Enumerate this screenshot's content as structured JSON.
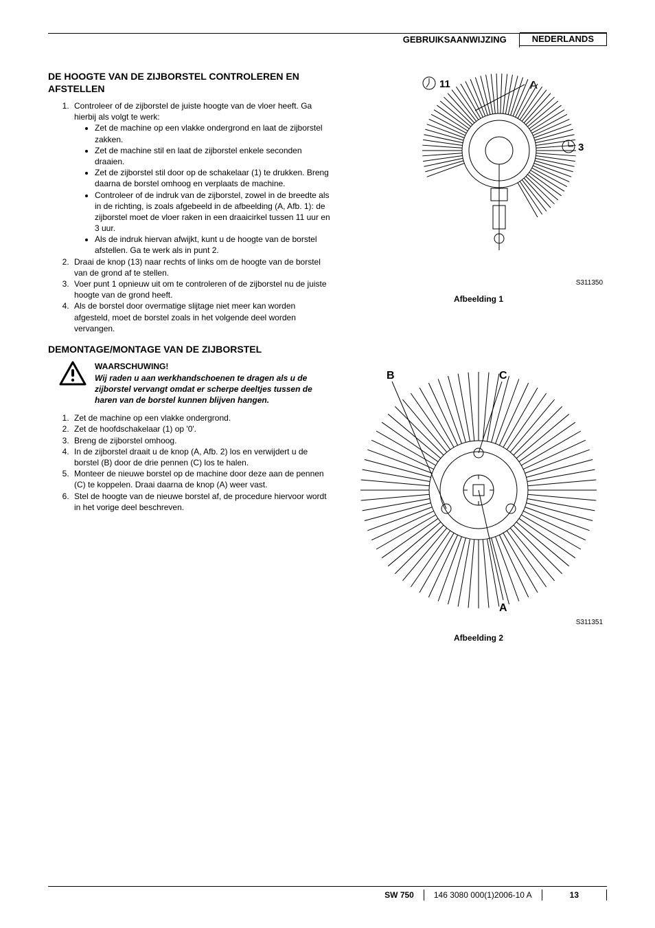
{
  "header": {
    "doc_type": "GEBRUIKSAANWIJZING",
    "language": "NEDERLANDS"
  },
  "section1": {
    "title": "DE HOOGTE VAN DE ZIJBORSTEL CONTROLEREN EN AFSTELLEN",
    "step1_intro": "Controleer of de zijborstel de juiste hoogte van de vloer heeft. Ga hierbij als volgt te werk:",
    "bullets": [
      "Zet de machine op een vlakke ondergrond en laat de zijborstel zakken.",
      "Zet de machine stil en laat de zijborstel enkele seconden draaien.",
      "Zet de zijborstel stil door op de schakelaar (1) te drukken. Breng daarna de borstel omhoog en verplaats de machine.",
      "Controleer of de indruk van de zijborstel, zowel in de breedte als in de richting, is zoals afgebeeld in de afbeelding (A, Afb. 1): de zijborstel moet de vloer raken in een draaicirkel tussen 11 uur en 3 uur.",
      "Als de indruk hiervan afwijkt, kunt u de hoogte van de borstel afstellen. Ga te werk als in punt 2."
    ],
    "step2": "Draai de knop (13) naar rechts of links om de hoogte van de borstel van de grond af te stellen.",
    "step3": "Voer punt 1 opnieuw uit om te controleren of de zijborstel nu de juiste hoogte van de grond heeft.",
    "step4": "Als de borstel door overmatige slijtage niet meer kan worden afgesteld, moet de borstel zoals in het volgende deel worden vervangen."
  },
  "section2": {
    "title": "DEMONTAGE/MONTAGE VAN DE ZIJBORSTEL",
    "warning_title": "WAARSCHUWING!",
    "warning_body": "Wij raden u aan werkhandschoenen te dragen als u de zijborstel vervangt omdat er scherpe deeltjes tussen de haren van de borstel kunnen blijven hangen.",
    "steps": [
      "Zet de machine op een vlakke ondergrond.",
      "Zet de hoofdschakelaar (1) op '0'.",
      "Breng de zijborstel omhoog.",
      "In de zijborstel draait u de knop (A, Afb. 2) los en verwijdert u de borstel (B) door de drie pennen (C) los te halen.",
      "Monteer de nieuwe borstel op de machine door deze aan de pennen (C) te koppelen. Draai daarna de knop (A) weer vast.",
      "Stel de hoogte van de nieuwe borstel af, de procedure hiervoor wordt in het vorige deel beschreven."
    ]
  },
  "figures": {
    "fig1": {
      "labels": {
        "l11": "11",
        "lA": "A",
        "l3": "3"
      },
      "id": "S311350",
      "caption": "Afbeelding 1",
      "stroke": "#000000"
    },
    "fig2": {
      "labels": {
        "lB": "B",
        "lC": "C",
        "lA": "A"
      },
      "id": "S311351",
      "caption": "Afbeelding 2",
      "stroke": "#000000"
    }
  },
  "footer": {
    "model": "SW 750",
    "doc": "146 3080 000(1)2006-10 A",
    "page": "13"
  },
  "style": {
    "page_bg": "#ffffff",
    "text_color": "#000000",
    "rule_color": "#000000"
  }
}
